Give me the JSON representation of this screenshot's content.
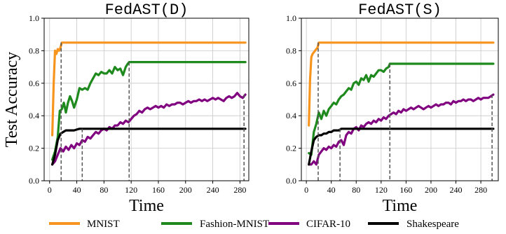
{
  "chart_data": [
    {
      "type": "line",
      "title": "FedAST(D)",
      "xlabel": "Time",
      "ylabel": "Test Accuracy",
      "xlim": [
        -8,
        293
      ],
      "ylim": [
        0.0,
        1.0
      ],
      "xticks": [
        0,
        40,
        80,
        120,
        160,
        200,
        240,
        280
      ],
      "yticks": [
        0.0,
        0.2,
        0.4,
        0.6,
        0.8,
        1.0
      ],
      "grid": true,
      "series": [
        {
          "name": "MNIST",
          "color": "#f7941d",
          "x": [
            4,
            6,
            8,
            10,
            12,
            14,
            16,
            18,
            30,
            60,
            100,
            140,
            180,
            220,
            260,
            288
          ],
          "y": [
            0.28,
            0.6,
            0.8,
            0.78,
            0.81,
            0.8,
            0.82,
            0.85,
            0.85,
            0.85,
            0.85,
            0.85,
            0.85,
            0.85,
            0.85,
            0.85
          ]
        },
        {
          "name": "Fashion-MNIST",
          "color": "#1e8a1e",
          "x": [
            4,
            8,
            12,
            15,
            18,
            21,
            24,
            27,
            30,
            33,
            36,
            40,
            44,
            48,
            52,
            56,
            60,
            64,
            68,
            72,
            76,
            80,
            84,
            88,
            92,
            96,
            100,
            104,
            108,
            112,
            115,
            117,
            140,
            180,
            220,
            260,
            288
          ],
          "y": [
            0.13,
            0.18,
            0.27,
            0.43,
            0.44,
            0.48,
            0.42,
            0.48,
            0.52,
            0.49,
            0.45,
            0.5,
            0.57,
            0.56,
            0.57,
            0.56,
            0.6,
            0.63,
            0.66,
            0.65,
            0.67,
            0.66,
            0.66,
            0.68,
            0.66,
            0.7,
            0.68,
            0.69,
            0.65,
            0.7,
            0.72,
            0.73,
            0.73,
            0.73,
            0.73,
            0.73,
            0.73
          ]
        },
        {
          "name": "CIFAR-10",
          "color": "#800080",
          "x": [
            4,
            8,
            12,
            16,
            20,
            24,
            28,
            32,
            36,
            40,
            44,
            48,
            52,
            56,
            60,
            64,
            68,
            72,
            76,
            80,
            84,
            88,
            92,
            96,
            100,
            104,
            108,
            112,
            116,
            120,
            124,
            128,
            132,
            136,
            140,
            144,
            148,
            152,
            156,
            160,
            164,
            168,
            172,
            176,
            180,
            184,
            188,
            192,
            196,
            200,
            204,
            208,
            212,
            216,
            220,
            224,
            228,
            232,
            236,
            240,
            244,
            248,
            252,
            256,
            260,
            264,
            268,
            272,
            276,
            280,
            284,
            288
          ],
          "y": [
            0.1,
            0.12,
            0.16,
            0.2,
            0.18,
            0.21,
            0.19,
            0.22,
            0.2,
            0.23,
            0.22,
            0.25,
            0.24,
            0.27,
            0.26,
            0.28,
            0.3,
            0.29,
            0.31,
            0.32,
            0.31,
            0.33,
            0.32,
            0.34,
            0.34,
            0.36,
            0.35,
            0.37,
            0.36,
            0.38,
            0.4,
            0.41,
            0.43,
            0.42,
            0.44,
            0.45,
            0.44,
            0.45,
            0.46,
            0.45,
            0.46,
            0.45,
            0.47,
            0.46,
            0.47,
            0.47,
            0.48,
            0.48,
            0.47,
            0.48,
            0.49,
            0.48,
            0.49,
            0.49,
            0.5,
            0.49,
            0.5,
            0.49,
            0.5,
            0.51,
            0.5,
            0.51,
            0.5,
            0.49,
            0.51,
            0.52,
            0.51,
            0.52,
            0.54,
            0.52,
            0.51,
            0.53
          ]
        },
        {
          "name": "Shakespeare",
          "color": "#000000",
          "x": [
            4,
            8,
            12,
            16,
            20,
            24,
            28,
            32,
            36,
            40,
            44,
            48,
            60,
            100,
            140,
            180,
            220,
            260,
            288
          ],
          "y": [
            0.1,
            0.16,
            0.25,
            0.29,
            0.3,
            0.31,
            0.31,
            0.31,
            0.31,
            0.315,
            0.32,
            0.32,
            0.32,
            0.32,
            0.32,
            0.32,
            0.32,
            0.32,
            0.32
          ]
        }
      ],
      "markers": [
        {
          "x": 17,
          "y": 0.85
        },
        {
          "x": 48,
          "y": 0.32
        },
        {
          "x": 117,
          "y": 0.73
        },
        {
          "x": 286,
          "y": 0.53
        }
      ]
    },
    {
      "type": "line",
      "title": "FedAST(S)",
      "xlabel": "Time",
      "ylabel": "",
      "xlim": [
        -8,
        308
      ],
      "ylim": [
        0.0,
        1.0
      ],
      "xticks": [
        0,
        40,
        80,
        120,
        160,
        200,
        240,
        280
      ],
      "yticks": [
        0.0,
        0.2,
        0.4,
        0.6,
        0.8,
        1.0
      ],
      "grid": true,
      "series": [
        {
          "name": "MNIST",
          "color": "#f7941d",
          "x": [
            4,
            6,
            8,
            10,
            12,
            14,
            16,
            18,
            20,
            40,
            80,
            120,
            160,
            200,
            240,
            280,
            300
          ],
          "y": [
            0.34,
            0.62,
            0.76,
            0.78,
            0.79,
            0.8,
            0.81,
            0.82,
            0.85,
            0.85,
            0.85,
            0.85,
            0.85,
            0.85,
            0.85,
            0.85,
            0.85
          ]
        },
        {
          "name": "Fashion-MNIST",
          "color": "#1e8a1e",
          "x": [
            4,
            8,
            12,
            16,
            20,
            24,
            28,
            32,
            36,
            40,
            44,
            48,
            52,
            56,
            60,
            64,
            68,
            72,
            76,
            80,
            84,
            88,
            92,
            96,
            100,
            104,
            108,
            112,
            116,
            120,
            124,
            128,
            132,
            134,
            160,
            200,
            240,
            280,
            300
          ],
          "y": [
            0.17,
            0.16,
            0.3,
            0.35,
            0.42,
            0.38,
            0.43,
            0.4,
            0.44,
            0.46,
            0.48,
            0.47,
            0.5,
            0.52,
            0.53,
            0.55,
            0.57,
            0.56,
            0.6,
            0.61,
            0.59,
            0.63,
            0.62,
            0.65,
            0.61,
            0.65,
            0.64,
            0.66,
            0.68,
            0.68,
            0.67,
            0.69,
            0.7,
            0.72,
            0.72,
            0.72,
            0.72,
            0.72,
            0.72
          ]
        },
        {
          "name": "CIFAR-10",
          "color": "#800080",
          "x": [
            4,
            8,
            12,
            16,
            20,
            24,
            28,
            32,
            36,
            40,
            44,
            48,
            52,
            56,
            60,
            64,
            68,
            72,
            76,
            80,
            84,
            88,
            92,
            96,
            100,
            104,
            108,
            112,
            116,
            120,
            124,
            128,
            132,
            136,
            140,
            144,
            148,
            152,
            156,
            160,
            164,
            168,
            172,
            176,
            180,
            184,
            188,
            192,
            196,
            200,
            204,
            208,
            212,
            216,
            220,
            224,
            228,
            232,
            236,
            240,
            244,
            248,
            252,
            256,
            260,
            264,
            268,
            272,
            276,
            280,
            284,
            288,
            292,
            296,
            300
          ],
          "y": [
            0.1,
            0.1,
            0.12,
            0.1,
            0.16,
            0.18,
            0.2,
            0.19,
            0.21,
            0.2,
            0.22,
            0.21,
            0.24,
            0.25,
            0.22,
            0.28,
            0.3,
            0.29,
            0.32,
            0.33,
            0.31,
            0.34,
            0.33,
            0.35,
            0.36,
            0.35,
            0.37,
            0.36,
            0.38,
            0.37,
            0.39,
            0.38,
            0.4,
            0.41,
            0.42,
            0.41,
            0.43,
            0.42,
            0.44,
            0.43,
            0.44,
            0.45,
            0.44,
            0.45,
            0.46,
            0.45,
            0.44,
            0.45,
            0.46,
            0.45,
            0.46,
            0.47,
            0.46,
            0.47,
            0.47,
            0.48,
            0.48,
            0.47,
            0.49,
            0.48,
            0.49,
            0.49,
            0.5,
            0.49,
            0.5,
            0.5,
            0.49,
            0.5,
            0.51,
            0.5,
            0.51,
            0.51,
            0.51,
            0.52,
            0.53
          ]
        },
        {
          "name": "Shakespeare",
          "color": "#000000",
          "x": [
            4,
            8,
            12,
            16,
            20,
            24,
            28,
            32,
            36,
            40,
            44,
            48,
            52,
            56,
            60,
            80,
            120,
            160,
            200,
            240,
            280,
            300
          ],
          "y": [
            0.1,
            0.18,
            0.25,
            0.27,
            0.28,
            0.28,
            0.29,
            0.29,
            0.3,
            0.3,
            0.31,
            0.31,
            0.31,
            0.32,
            0.32,
            0.32,
            0.32,
            0.32,
            0.32,
            0.32,
            0.32,
            0.32
          ]
        }
      ],
      "markers": [
        {
          "x": 19,
          "y": 0.85
        },
        {
          "x": 54,
          "y": 0.32
        },
        {
          "x": 134,
          "y": 0.72
        },
        {
          "x": 298,
          "y": 0.53
        }
      ]
    }
  ],
  "legend": {
    "items": [
      {
        "label": "MNIST",
        "color": "#f7941d"
      },
      {
        "label": "Fashion-MNIST",
        "color": "#1e8a1e"
      },
      {
        "label": "CIFAR-10",
        "color": "#800080"
      },
      {
        "label": "Shakespeare",
        "color": "#000000"
      }
    ]
  }
}
